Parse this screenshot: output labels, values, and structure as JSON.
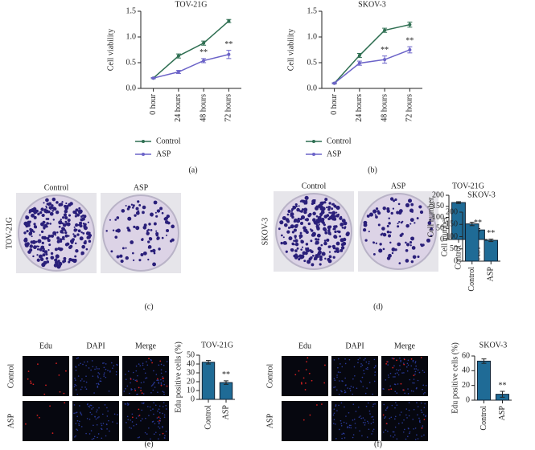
{
  "chart_data": [
    {
      "type": "line",
      "title": "TOV-21G",
      "y_label": "Cell viability",
      "categories": [
        "0 hour",
        "24 hours",
        "48 hours",
        "72 hours"
      ],
      "series": [
        {
          "name": "Control",
          "color": "#2f6f52",
          "values": [
            0.2,
            0.63,
            0.88,
            1.31
          ],
          "errors": [
            0.01,
            0.04,
            0.04,
            0.03
          ]
        },
        {
          "name": "ASP",
          "color": "#6b63c8",
          "values": [
            0.2,
            0.32,
            0.54,
            0.66
          ],
          "errors": [
            0.01,
            0.03,
            0.04,
            0.08
          ],
          "significance": [
            null,
            null,
            "**",
            "**"
          ]
        }
      ],
      "ylim": [
        0,
        1.5
      ],
      "yticks": [
        {
          "value": 0,
          "label": "0.0"
        },
        {
          "value": 0.5,
          "label": "0.5"
        },
        {
          "value": 1,
          "label": "1.0"
        },
        {
          "value": 1.5,
          "label": "1.5"
        }
      ],
      "legend": "bottom"
    },
    {
      "type": "line",
      "title": "SKOV-3",
      "y_label": "Cell viability",
      "categories": [
        "0 hour",
        "24 hours",
        "48 hours",
        "72 hours"
      ],
      "series": [
        {
          "name": "Control",
          "color": "#2f6f52",
          "values": [
            0.1,
            0.64,
            1.13,
            1.24
          ],
          "errors": [
            0.01,
            0.04,
            0.04,
            0.05
          ]
        },
        {
          "name": "ASP",
          "color": "#6b63c8",
          "values": [
            0.1,
            0.49,
            0.56,
            0.75
          ],
          "errors": [
            0.01,
            0.04,
            0.07,
            0.06
          ],
          "significance": [
            null,
            null,
            "**",
            "**"
          ]
        }
      ],
      "ylim": [
        0,
        1.5
      ],
      "yticks": [
        {
          "value": 0,
          "label": "0.0"
        },
        {
          "value": 0.5,
          "label": "0.5"
        },
        {
          "value": 1,
          "label": "1.0"
        },
        {
          "value": 1.5,
          "label": "1.5"
        }
      ],
      "legend": "bottom"
    },
    {
      "type": "bar",
      "title": "TOV-21G",
      "y_label": "Cell number",
      "categories": [
        "Control",
        "ASP"
      ],
      "values": [
        167,
        43
      ],
      "errors": [
        4,
        6
      ],
      "significance": [
        null,
        "**"
      ],
      "color": "#1f6b96",
      "ylim": [
        0,
        200
      ],
      "yticks": [
        0,
        50,
        100,
        150,
        200
      ]
    },
    {
      "type": "bar",
      "title": "SKOV-3",
      "y_label": "Cell number",
      "categories": [
        "Control",
        "ASP"
      ],
      "values": [
        152,
        85
      ],
      "errors": [
        7,
        5
      ],
      "significance": [
        null,
        "**"
      ],
      "color": "#1f6b96",
      "ylim": [
        0,
        200
      ],
      "yticks": [
        0,
        50,
        100,
        150,
        200
      ]
    },
    {
      "type": "bar",
      "title": "TOV-21G",
      "y_label": "Edu positive cells (%)",
      "categories": [
        "Control",
        "ASP"
      ],
      "values": [
        42,
        19
      ],
      "errors": [
        2,
        2
      ],
      "significance": [
        null,
        "**"
      ],
      "color": "#1f6b96",
      "ylim": [
        0,
        50
      ],
      "yticks": [
        0,
        10,
        20,
        30,
        40,
        50
      ]
    },
    {
      "type": "bar",
      "title": "SKOV-3",
      "y_label": "Edu positive cells (%)",
      "categories": [
        "Control",
        "ASP"
      ],
      "values": [
        53,
        8
      ],
      "errors": [
        3,
        4
      ],
      "significance": [
        null,
        "**"
      ],
      "color": "#1f6b96",
      "ylim": [
        0,
        60
      ],
      "yticks": [
        0,
        20,
        40,
        60
      ]
    }
  ],
  "panel_labels": [
    "(a)",
    "(b)",
    "(c)",
    "(d)",
    "(e)",
    "(f)"
  ],
  "colony_panels": [
    {
      "cell_line": "TOV-21G",
      "columns": [
        "Control",
        "ASP"
      ]
    },
    {
      "cell_line": "SKOV-3",
      "columns": [
        "Control",
        "ASP"
      ]
    }
  ],
  "edu_panels": [
    {
      "columns": [
        "Edu",
        "DAPI",
        "Merge"
      ],
      "rows": [
        "Control",
        "ASP"
      ]
    },
    {
      "columns": [
        "Edu",
        "DAPI",
        "Merge"
      ],
      "rows": [
        "Control",
        "ASP"
      ]
    }
  ]
}
